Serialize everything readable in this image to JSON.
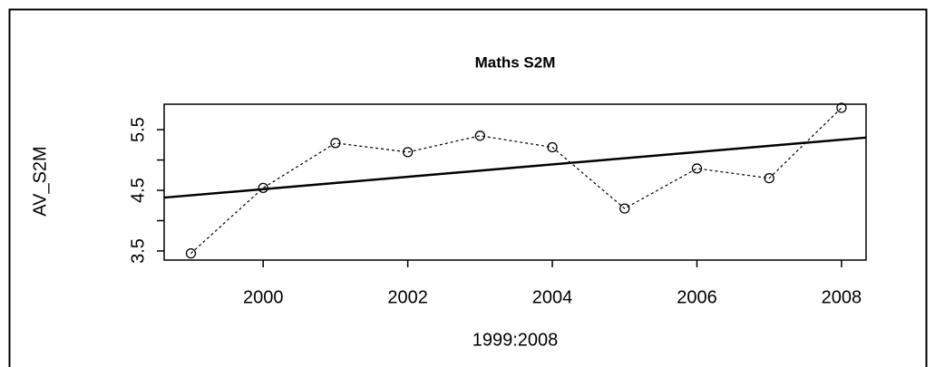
{
  "chart_data": {
    "type": "line",
    "title": "Maths S2M",
    "x_label": "1999:2008",
    "y_label": "AV_S2M",
    "x": [
      1999,
      2000,
      2001,
      2002,
      2003,
      2004,
      2005,
      2006,
      2007,
      2008
    ],
    "values": [
      3.46,
      4.54,
      5.28,
      5.13,
      5.4,
      5.21,
      4.2,
      4.86,
      4.7,
      5.86
    ],
    "trend": {
      "x": [
        1998.63,
        2008.34
      ],
      "y": [
        4.38,
        5.37
      ]
    },
    "xlim": [
      1998.63,
      2008.34
    ],
    "ylim": [
      3.35,
      5.92
    ],
    "xticks": [
      2000,
      2002,
      2004,
      2006,
      2008
    ],
    "yticks": [
      3.5,
      4.5,
      5.5
    ],
    "yminor_ticks": [
      4,
      5
    ],
    "color": "#000000"
  }
}
